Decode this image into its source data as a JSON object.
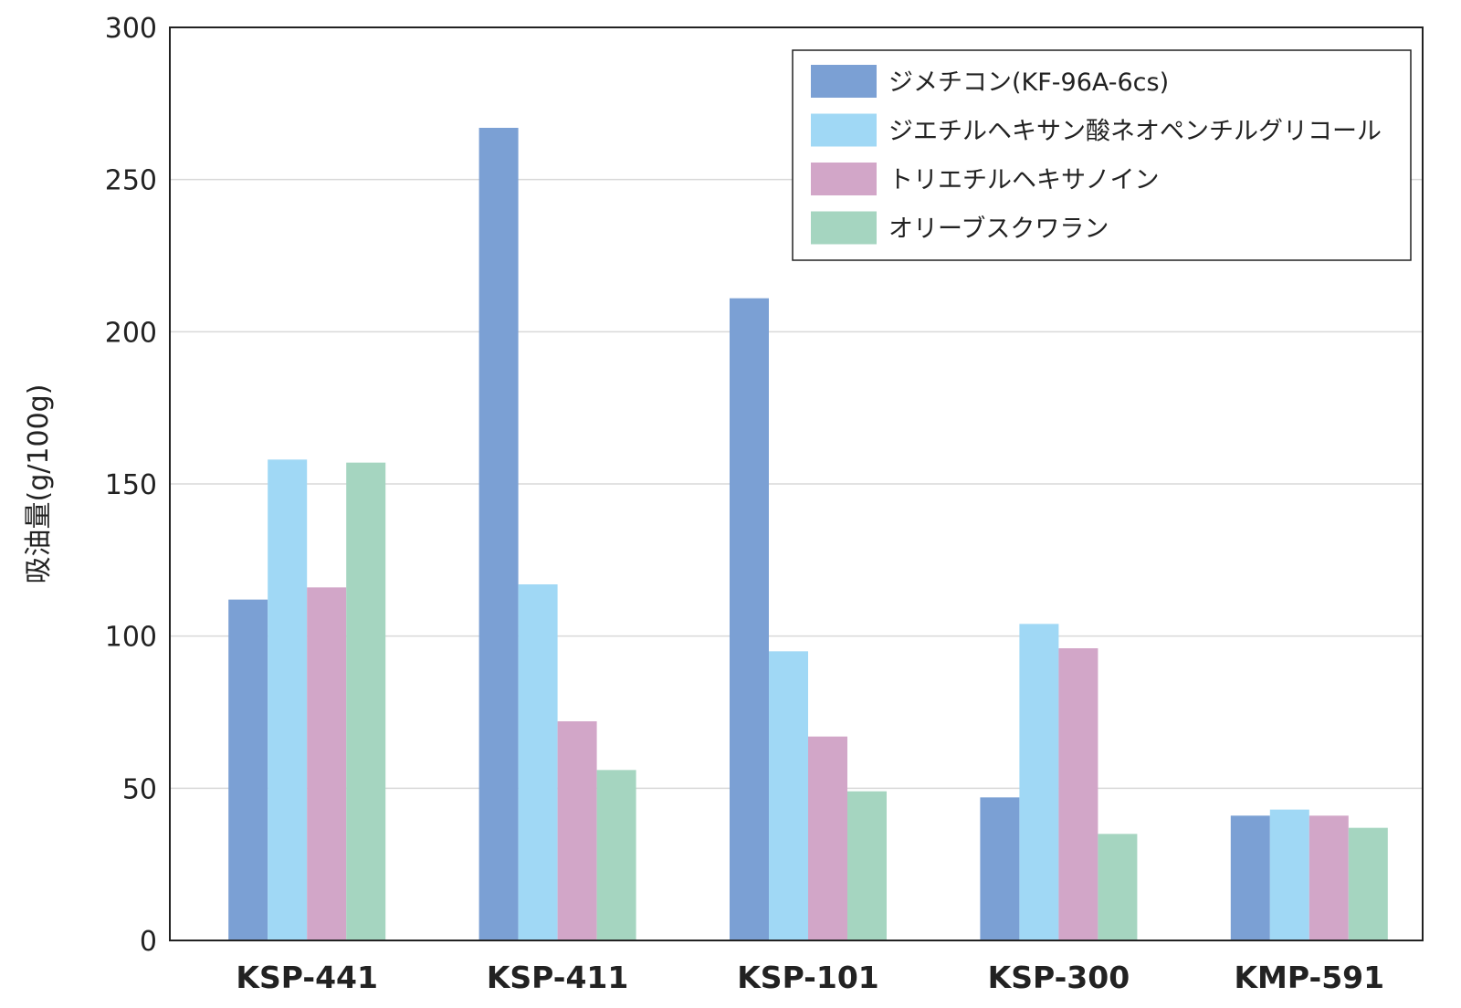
{
  "chart_data": {
    "type": "bar",
    "title": "",
    "xlabel": "",
    "ylabel": "吸油量(g/100g)",
    "ylim": [
      0,
      300
    ],
    "yticks": [
      0,
      50,
      100,
      150,
      200,
      250,
      300
    ],
    "grid": true,
    "legend_position": "top-right",
    "categories": [
      "KSP-441",
      "KSP-411",
      "KSP-101",
      "KSP-300",
      "KMP-591"
    ],
    "series": [
      {
        "name": "ジメチコン(KF-96A-6cs)",
        "color": "#7ba0d4",
        "values": [
          112,
          267,
          211,
          47,
          41
        ]
      },
      {
        "name": "ジエチルヘキサン酸ネオペンチルグリコール",
        "color": "#a0d8f5",
        "values": [
          158,
          117,
          95,
          104,
          43
        ]
      },
      {
        "name": "トリエチルヘキサノイン",
        "color": "#d2a6c8",
        "values": [
          116,
          72,
          67,
          96,
          41
        ]
      },
      {
        "name": "オリーブスクワラン",
        "color": "#a5d5c0",
        "values": [
          157,
          56,
          49,
          35,
          37
        ]
      }
    ]
  }
}
